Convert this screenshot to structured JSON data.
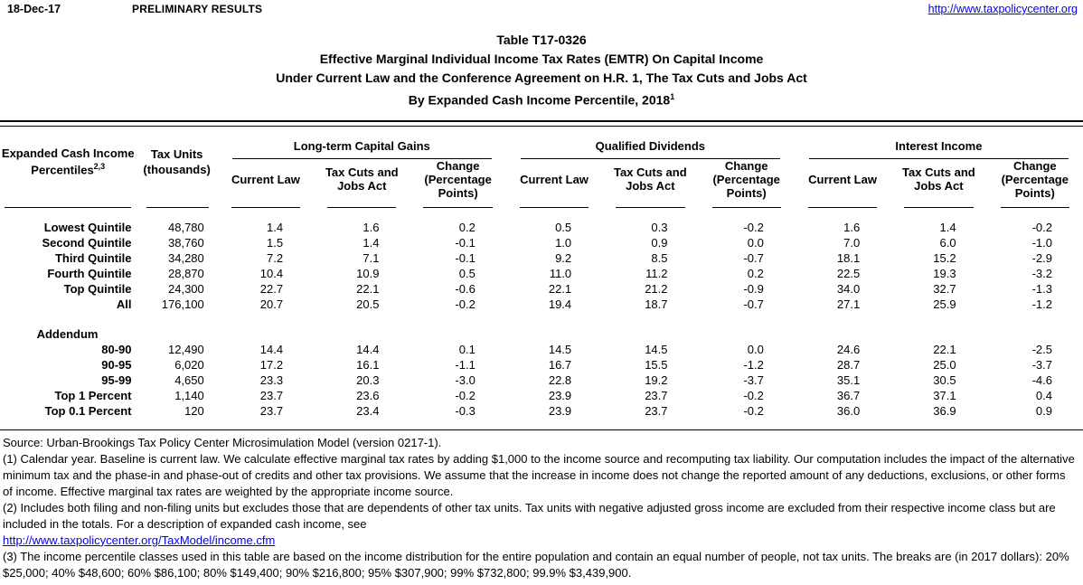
{
  "page_header": {
    "date": "18-Dec-17",
    "status": "PRELIMINARY RESULTS",
    "url": "http://www.taxpolicycenter.org"
  },
  "title": {
    "line1": "Table T17-0326",
    "line2": "Effective Marginal Individual Income Tax Rates (EMTR) On Capital Income",
    "line3": "Under Current Law and the Conference Agreement on H.R. 1, The Tax Cuts and Jobs Act",
    "line4": "By Expanded Cash Income Percentile, 2018",
    "line4_superscript": "1"
  },
  "table": {
    "col1_header": {
      "line1": "Expanded Cash Income",
      "line2": "Percentiles",
      "superscript": "2,3"
    },
    "col2_header": {
      "line1": "Tax Units",
      "line2": "(thousands)"
    },
    "groups": [
      "Long-term Capital Gains",
      "Qualified Dividends",
      "Interest Income"
    ],
    "sub_headers": [
      "Current Law",
      "Tax Cuts and Jobs Act",
      "Change (Percentage Points)"
    ],
    "rows": [
      [
        "Lowest Quintile",
        "48,780",
        "1.4",
        "1.6",
        "0.2",
        "0.5",
        "0.3",
        "-0.2",
        "1.6",
        "1.4",
        "-0.2"
      ],
      [
        "Second Quintile",
        "38,760",
        "1.5",
        "1.4",
        "-0.1",
        "1.0",
        "0.9",
        "0.0",
        "7.0",
        "6.0",
        "-1.0"
      ],
      [
        "Third Quintile",
        "34,280",
        "7.2",
        "7.1",
        "-0.1",
        "9.2",
        "8.5",
        "-0.7",
        "18.1",
        "15.2",
        "-2.9"
      ],
      [
        "Fourth Quintile",
        "28,870",
        "10.4",
        "10.9",
        "0.5",
        "11.0",
        "11.2",
        "0.2",
        "22.5",
        "19.3",
        "-3.2"
      ],
      [
        "Top Quintile",
        "24,300",
        "22.7",
        "22.1",
        "-0.6",
        "22.1",
        "21.2",
        "-0.9",
        "34.0",
        "32.7",
        "-1.3"
      ],
      [
        "All",
        "176,100",
        "20.7",
        "20.5",
        "-0.2",
        "19.4",
        "18.7",
        "-0.7",
        "27.1",
        "25.9",
        "-1.2"
      ]
    ],
    "addendum_label": "Addendum",
    "addendum_rows": [
      [
        "80-90",
        "12,490",
        "14.4",
        "14.4",
        "0.1",
        "14.5",
        "14.5",
        "0.0",
        "24.6",
        "22.1",
        "-2.5"
      ],
      [
        "90-95",
        "6,020",
        "17.2",
        "16.1",
        "-1.1",
        "16.7",
        "15.5",
        "-1.2",
        "28.7",
        "25.0",
        "-3.7"
      ],
      [
        "95-99",
        "4,650",
        "23.3",
        "20.3",
        "-3.0",
        "22.8",
        "19.2",
        "-3.7",
        "35.1",
        "30.5",
        "-4.6"
      ],
      [
        "Top 1 Percent",
        "1,140",
        "23.7",
        "23.6",
        "-0.2",
        "23.9",
        "23.7",
        "-0.2",
        "36.7",
        "37.1",
        "0.4"
      ],
      [
        "Top 0.1 Percent",
        "120",
        "23.7",
        "23.4",
        "-0.3",
        "23.9",
        "23.7",
        "-0.2",
        "36.0",
        "36.9",
        "0.9"
      ]
    ]
  },
  "footnotes": {
    "source": "Source: Urban-Brookings Tax Policy Center Microsimulation Model (version 0217-1).",
    "note1": "(1) Calendar year. Baseline is current law. We calculate effective marginal tax rates by adding $1,000 to the income source and recomputing tax liability. Our computation includes the impact of the alternative minimum tax and the phase-in and phase-out of credits and other tax provisions. We assume that the increase in income does not change the reported amount of any deductions, exclusions, or other forms of income. Effective marginal tax rates are weighted by the appropriate income source.",
    "note2": "(2) Includes both filing and non-filing units but excludes those that are dependents of other tax units. Tax units with negative adjusted gross income are excluded from their respective income class but are included in the totals. For a description of expanded cash income, see",
    "note2_link": "http://www.taxpolicycenter.org/TaxModel/income.cfm",
    "note3": "(3) The income percentile classes used in this table are based on the income distribution for the entire population and contain an equal number of people, not tax units. The breaks are (in 2017 dollars): 20% $25,000; 40% $48,600; 60% $86,100; 80% $149,400; 90% $216,800; 95% $307,900; 99% $732,800; 99.9% $3,439,900."
  }
}
